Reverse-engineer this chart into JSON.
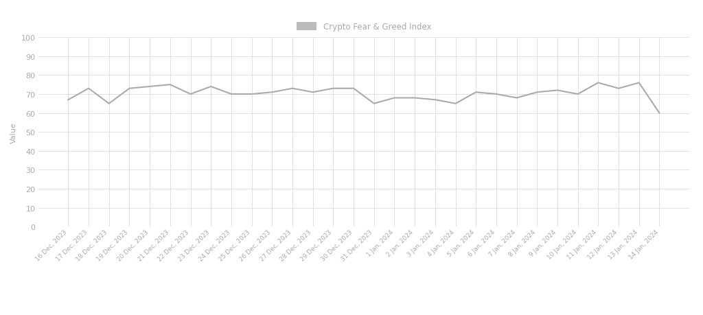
{
  "labels": [
    "16 Dec, 2023",
    "17 Dec, 2023",
    "18 Dec, 2023",
    "19 Dec, 2023",
    "20 Dec, 2023",
    "21 Dec, 2023",
    "22 Dec, 2023",
    "23 Dec, 2023",
    "24 Dec, 2023",
    "25 Dec, 2023",
    "26 Dec, 2023",
    "27 Dec, 2023",
    "28 Dec, 2023",
    "29 Dec, 2023",
    "30 Dec, 2023",
    "31 Dec, 2023",
    "1 Jan, 2024",
    "2 Jan, 2024",
    "3 Jan, 2024",
    "4 Jan, 2024",
    "5 Jan, 2024",
    "6 Jan, 2024",
    "7 Jan, 2024",
    "8 Jan, 2024",
    "9 Jan, 2024",
    "10 Jan, 2024",
    "11 Jan, 2024",
    "12 Jan, 2024",
    "13 Jan, 2024",
    "14 Jan, 2024"
  ],
  "values": [
    67,
    73,
    65,
    73,
    74,
    75,
    70,
    74,
    70,
    70,
    71,
    73,
    71,
    73,
    73,
    65,
    68,
    68,
    67,
    65,
    71,
    70,
    68,
    71,
    72,
    70,
    76,
    73,
    76,
    60
  ],
  "line_color": "#aaaaaa",
  "line_width": 1.5,
  "ylabel": "Value",
  "ylim": [
    0,
    100
  ],
  "yticks": [
    0,
    10,
    20,
    30,
    40,
    50,
    60,
    70,
    80,
    90,
    100
  ],
  "legend_label": "Crypto Fear & Greed Index",
  "legend_patch_color": "#bbbbbb",
  "grid_color": "#e0e0e0",
  "background_color": "#ffffff",
  "tick_label_color": "#aaaaaa",
  "ylabel_color": "#aaaaaa"
}
